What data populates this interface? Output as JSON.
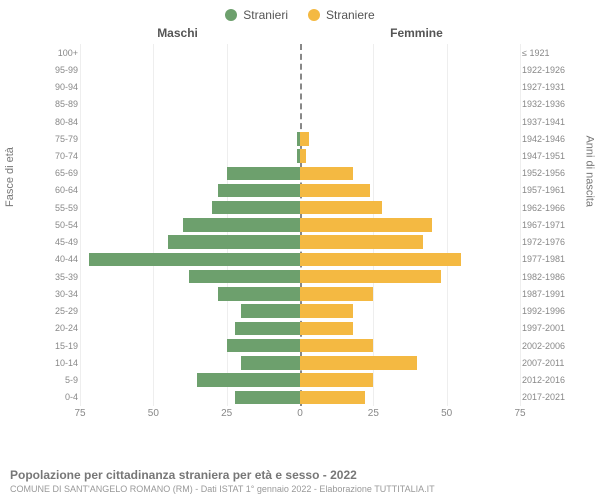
{
  "legend": {
    "male": {
      "label": "Stranieri",
      "color": "#6da06d"
    },
    "female": {
      "label": "Straniere",
      "color": "#f4b942"
    }
  },
  "column_headers": {
    "left": "Maschi",
    "right": "Femmine"
  },
  "y_axis_labels": {
    "left": "Fasce di età",
    "right": "Anni di nascita"
  },
  "pyramid": {
    "type": "population-pyramid",
    "x_max": 75,
    "x_ticks": [
      75,
      50,
      25,
      0,
      25,
      50,
      75
    ],
    "grid_color": "#eeeeee",
    "center_line_color": "#888888",
    "background_color": "#ffffff",
    "male_color": "#6da06d",
    "female_color": "#f4b942",
    "label_fontsize": 9,
    "label_color": "#888888",
    "rows": [
      {
        "age": "100+",
        "birth": "≤ 1921",
        "m": 0,
        "f": 0
      },
      {
        "age": "95-99",
        "birth": "1922-1926",
        "m": 0,
        "f": 0
      },
      {
        "age": "90-94",
        "birth": "1927-1931",
        "m": 0,
        "f": 0
      },
      {
        "age": "85-89",
        "birth": "1932-1936",
        "m": 0,
        "f": 0
      },
      {
        "age": "80-84",
        "birth": "1937-1941",
        "m": 0,
        "f": 0
      },
      {
        "age": "75-79",
        "birth": "1942-1946",
        "m": 1,
        "f": 3
      },
      {
        "age": "70-74",
        "birth": "1947-1951",
        "m": 1,
        "f": 2
      },
      {
        "age": "65-69",
        "birth": "1952-1956",
        "m": 25,
        "f": 18
      },
      {
        "age": "60-64",
        "birth": "1957-1961",
        "m": 28,
        "f": 24
      },
      {
        "age": "55-59",
        "birth": "1962-1966",
        "m": 30,
        "f": 28
      },
      {
        "age": "50-54",
        "birth": "1967-1971",
        "m": 40,
        "f": 45
      },
      {
        "age": "45-49",
        "birth": "1972-1976",
        "m": 45,
        "f": 42
      },
      {
        "age": "40-44",
        "birth": "1977-1981",
        "m": 72,
        "f": 55
      },
      {
        "age": "35-39",
        "birth": "1982-1986",
        "m": 38,
        "f": 48
      },
      {
        "age": "30-34",
        "birth": "1987-1991",
        "m": 28,
        "f": 25
      },
      {
        "age": "25-29",
        "birth": "1992-1996",
        "m": 20,
        "f": 18
      },
      {
        "age": "20-24",
        "birth": "1997-2001",
        "m": 22,
        "f": 18
      },
      {
        "age": "15-19",
        "birth": "2002-2006",
        "m": 25,
        "f": 25
      },
      {
        "age": "10-14",
        "birth": "2007-2011",
        "m": 20,
        "f": 40
      },
      {
        "age": "5-9",
        "birth": "2012-2016",
        "m": 35,
        "f": 25
      },
      {
        "age": "0-4",
        "birth": "2017-2021",
        "m": 22,
        "f": 22
      }
    ]
  },
  "footer": {
    "title": "Popolazione per cittadinanza straniera per età e sesso - 2022",
    "subtitle": "COMUNE DI SANT'ANGELO ROMANO (RM) - Dati ISTAT 1° gennaio 2022 - Elaborazione TUTTITALIA.IT"
  }
}
